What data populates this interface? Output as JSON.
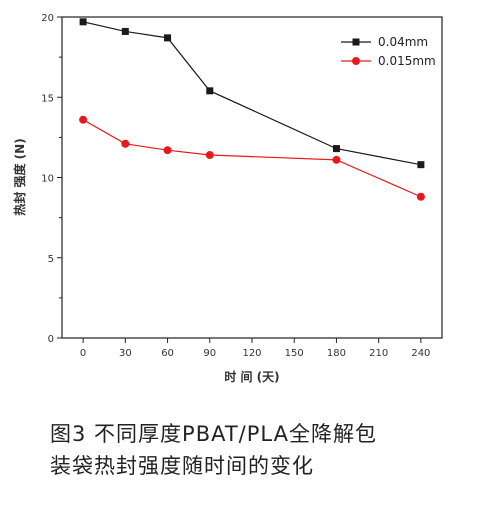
{
  "chart_data": {
    "type": "line",
    "xlabel": "时 间 (天)",
    "ylabel": "热封 强度 (N)",
    "x_ticks": [
      0,
      30,
      60,
      90,
      120,
      150,
      180,
      210,
      240
    ],
    "y_ticks": [
      0,
      5,
      10,
      15,
      20
    ],
    "xlim": [
      -15,
      255
    ],
    "ylim": [
      0,
      20
    ],
    "legend_position": "top-right",
    "grid": false,
    "series": [
      {
        "name": "0.04mm",
        "color": "#1a1a1a",
        "marker": "square",
        "x": [
          0,
          30,
          60,
          90,
          180,
          240
        ],
        "y": [
          19.7,
          19.1,
          18.7,
          15.4,
          11.8,
          10.8
        ]
      },
      {
        "name": "0.015mm",
        "color": "#e8191c",
        "marker": "circle",
        "x": [
          0,
          30,
          60,
          90,
          180,
          240
        ],
        "y": [
          13.6,
          12.1,
          11.7,
          11.4,
          11.1,
          8.8
        ]
      }
    ]
  },
  "caption": {
    "line1": "图3  不同厚度PBAT/PLA全降解包",
    "line2": "装袋热封强度随时间的变化"
  }
}
